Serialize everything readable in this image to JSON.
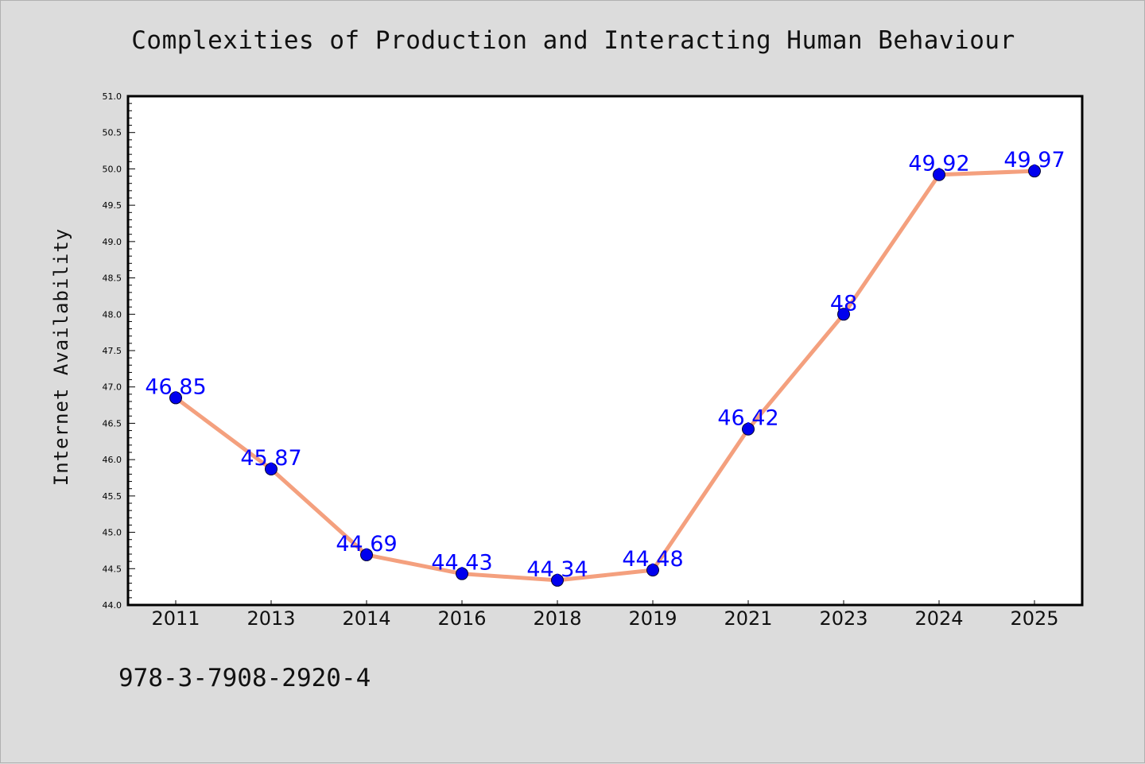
{
  "footer": {
    "isbn": "978-3-7908-2920-4"
  },
  "chart_data": {
    "type": "line",
    "title": "Complexities of Production and Interacting Human Behaviour",
    "xlabel": "",
    "ylabel": "Internet Availability",
    "categories": [
      "2011",
      "2013",
      "2014",
      "2016",
      "2018",
      "2019",
      "2021",
      "2023",
      "2024",
      "2025"
    ],
    "values": [
      46.85,
      45.87,
      44.69,
      44.43,
      44.34,
      44.48,
      46.42,
      48,
      49.92,
      49.97
    ],
    "data_labels": [
      "46.85",
      "45.87",
      "44.69",
      "44.43",
      "44.34",
      "44.48",
      "46.42",
      "48",
      "49.92",
      "49.97"
    ],
    "ylim": [
      44.0,
      51.0
    ],
    "yticks": [
      "44.0",
      "44.5",
      "45.0",
      "45.5",
      "46.0",
      "46.5",
      "47.0",
      "47.5",
      "48.0",
      "48.5",
      "49.0",
      "49.5",
      "50.0",
      "50.5",
      "51.0"
    ],
    "grid": false,
    "legend": "none",
    "colors": {
      "line": "#f4a07e",
      "marker": "#0000ee",
      "label": "#0000ff",
      "plot_bg": "#ffffff",
      "axes": "#000000"
    }
  }
}
